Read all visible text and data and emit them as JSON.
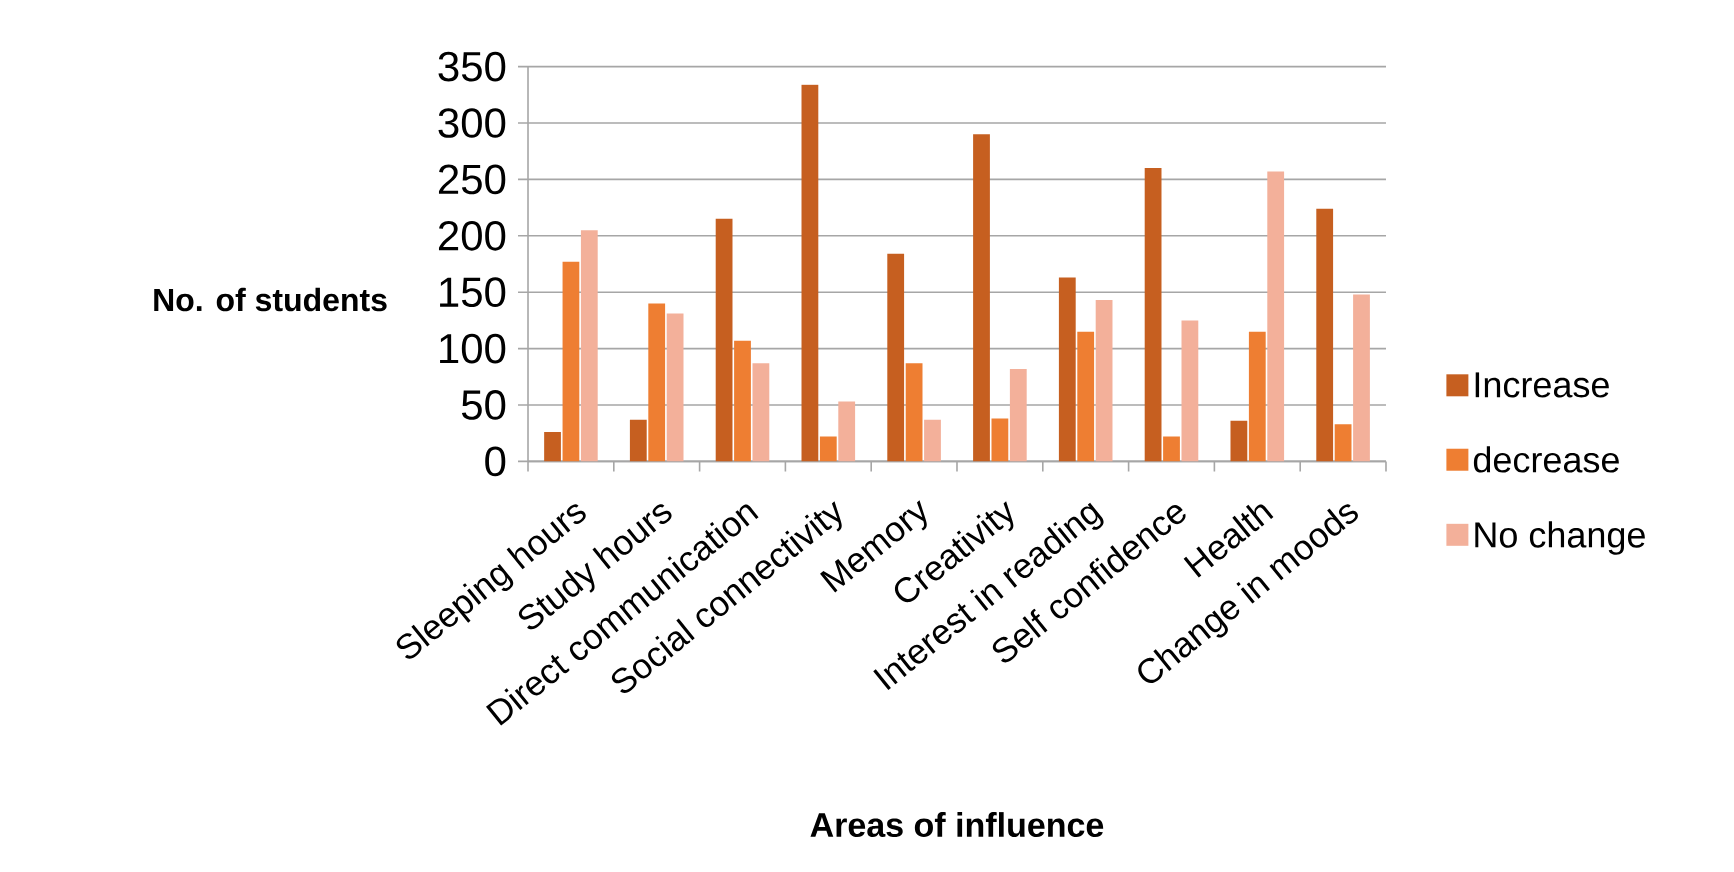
{
  "chart_data": {
    "type": "bar",
    "xlabel": "Areas of influence",
    "ylabel": "No. of students",
    "categories": [
      "Sleeping hours",
      "Study hours",
      "Direct communication",
      "Social connectivity",
      "Memory",
      "Creativity",
      "Interest in reading",
      "Self confidence",
      "Health",
      "Change in moods"
    ],
    "series": [
      {
        "name": "Increase",
        "color": "#c65f20",
        "values": [
          26,
          37,
          215,
          334,
          184,
          290,
          163,
          260,
          36,
          224
        ]
      },
      {
        "name": "decrease",
        "color": "#ee7e32",
        "values": [
          177,
          140,
          107,
          22,
          87,
          38,
          115,
          22,
          115,
          33
        ]
      },
      {
        "name": "No change",
        "color": "#f3b09a",
        "values": [
          205,
          131,
          87,
          53,
          37,
          82,
          143,
          125,
          257,
          148
        ]
      }
    ],
    "ylim": [
      0,
      350
    ],
    "yticks": [
      0,
      50,
      100,
      150,
      200,
      250,
      300,
      350
    ],
    "grid": "y",
    "legend": "right"
  }
}
